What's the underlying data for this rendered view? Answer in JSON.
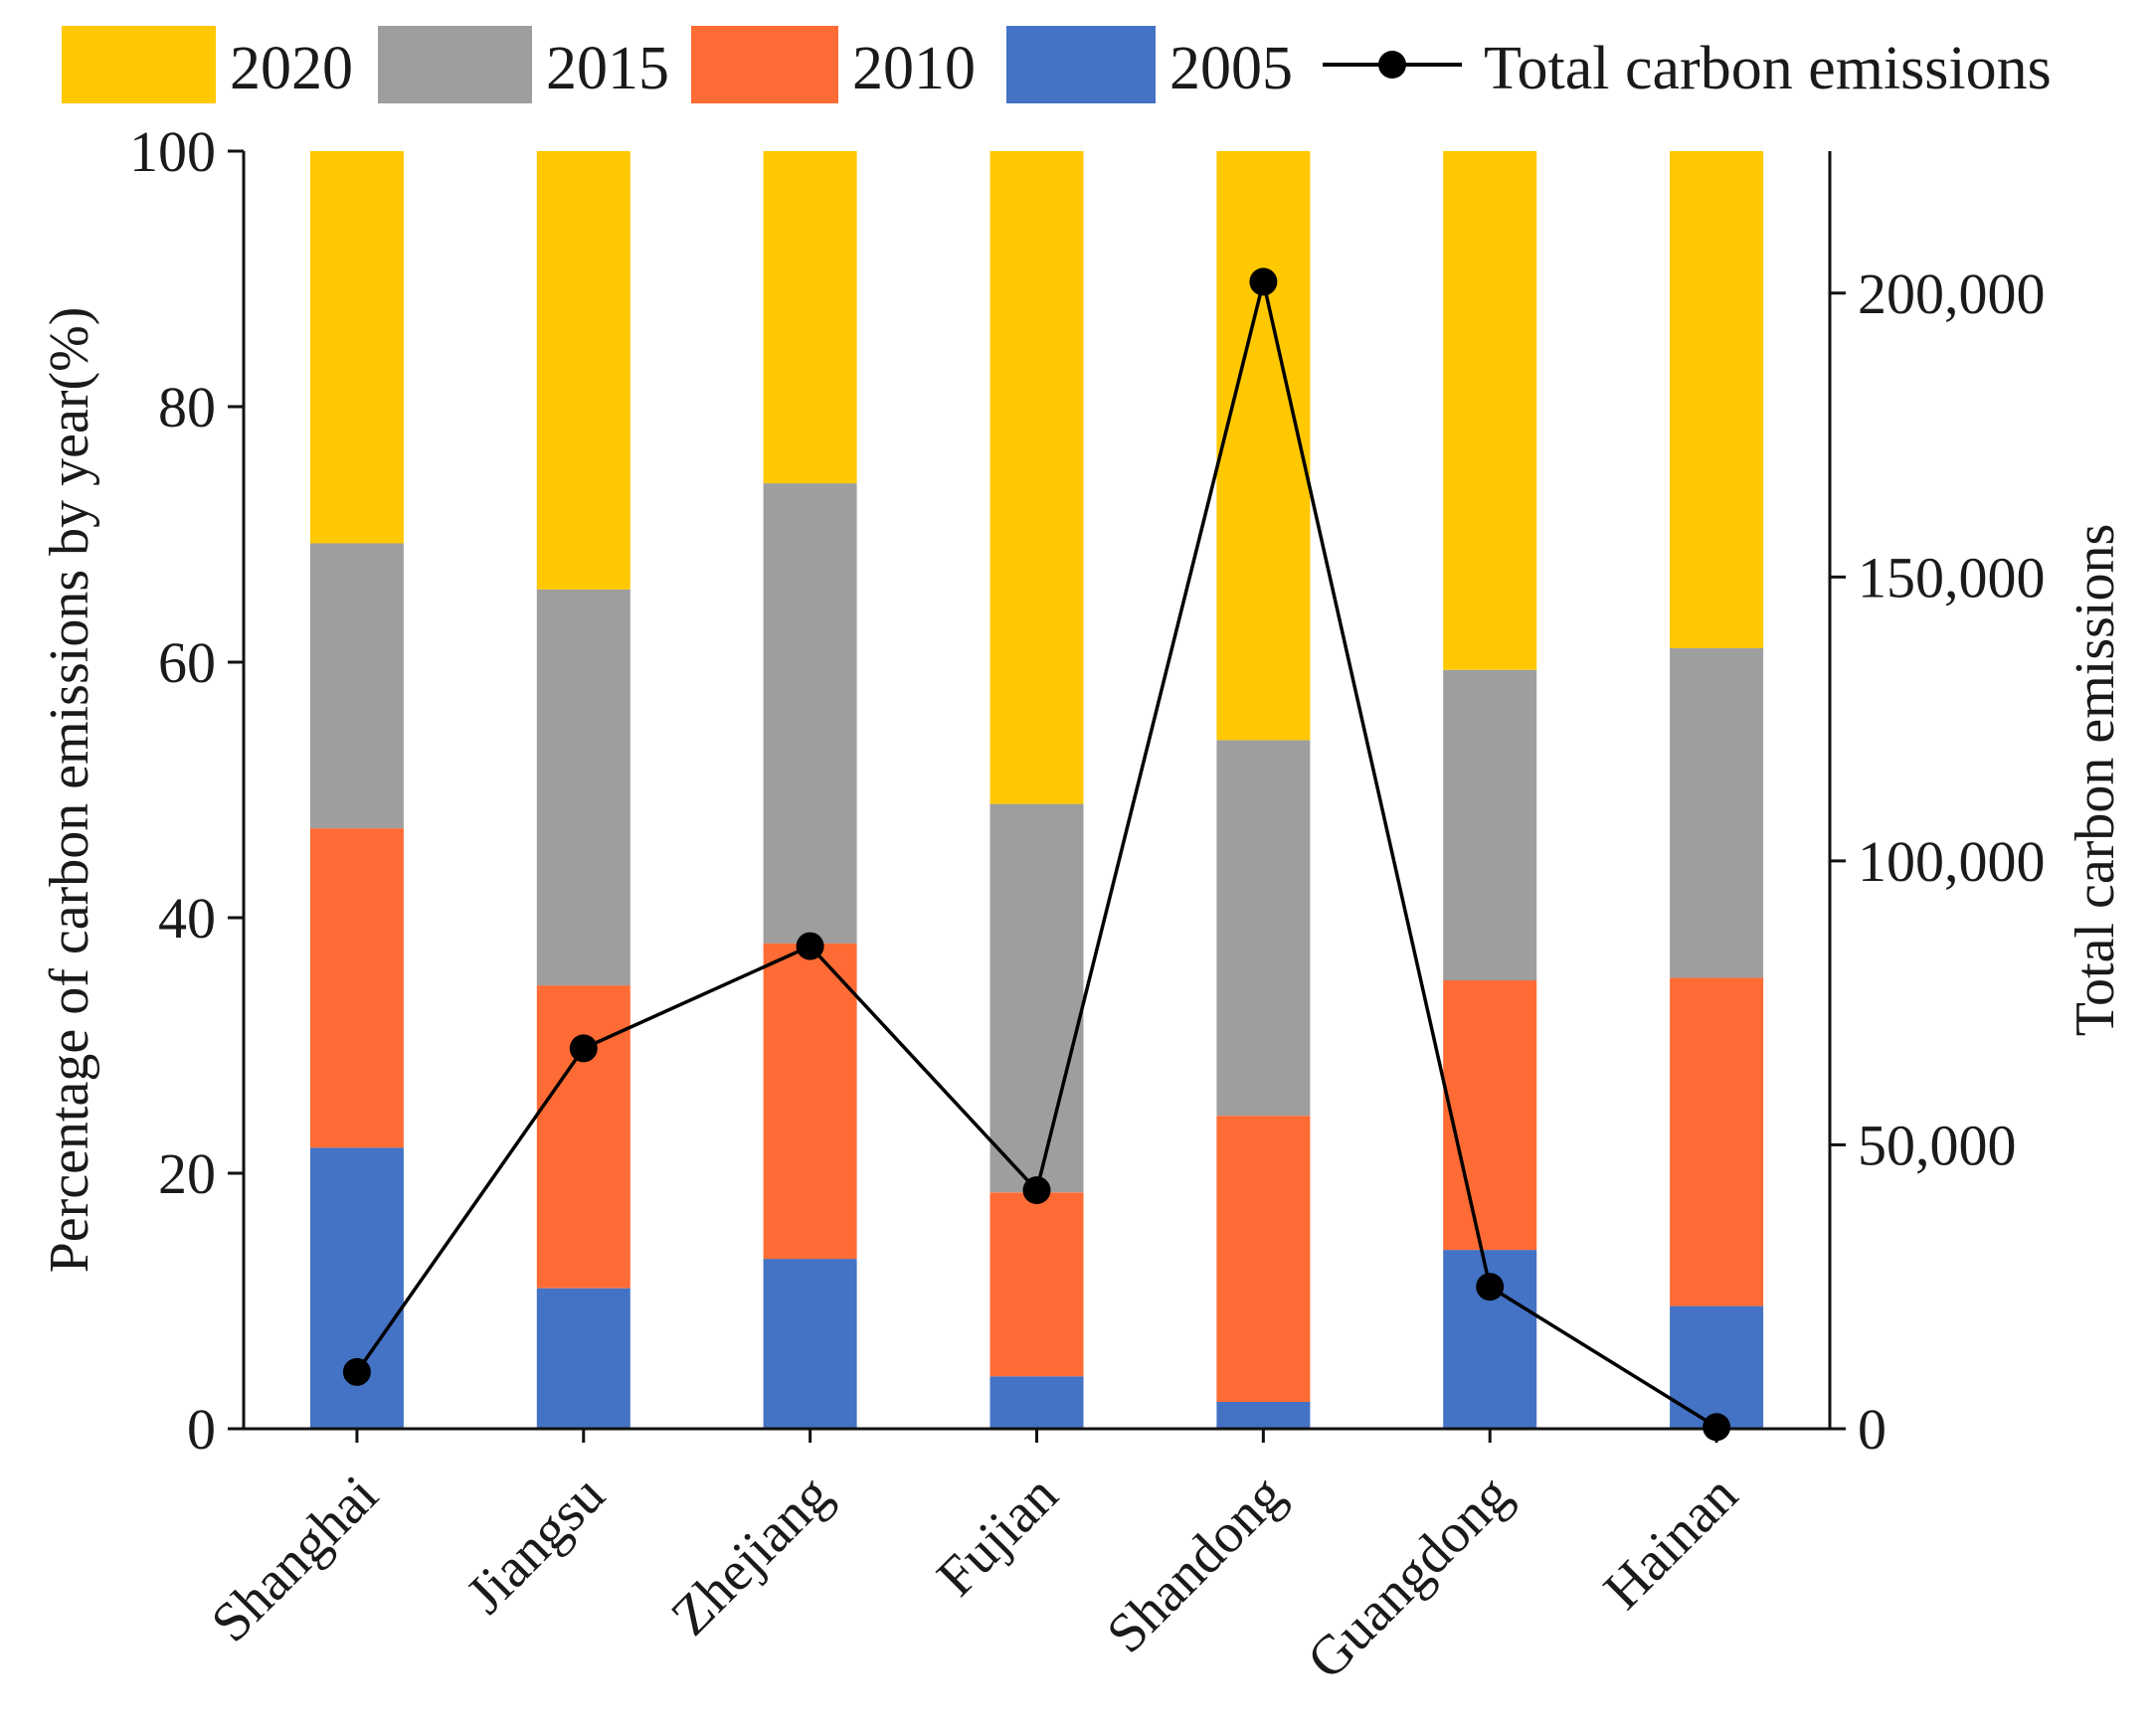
{
  "chart_data": {
    "type": "bar",
    "stacked": true,
    "categories": [
      "Shanghai",
      "Jiangsu",
      "Zhejiang",
      "Fujian",
      "Shandong",
      "Guangdong",
      "Hainan"
    ],
    "series": [
      {
        "name": "2005",
        "color": "#4472C4",
        "values": [
          22,
          11,
          13.3,
          4.1,
          2.1,
          14,
          9.6
        ]
      },
      {
        "name": "2010",
        "color": "#FF6B35",
        "values": [
          25,
          23.7,
          24.7,
          14.4,
          22.4,
          21.1,
          25.7
        ]
      },
      {
        "name": "2015",
        "color": "#9E9E9E",
        "values": [
          22.3,
          31,
          36,
          30.4,
          29.4,
          24.3,
          25.8
        ]
      },
      {
        "name": "2020",
        "color": "#FFC800",
        "values": [
          30.7,
          34.3,
          26,
          51.1,
          46.1,
          40.6,
          38.9
        ]
      }
    ],
    "line_series": {
      "name": "Total carbon emissions",
      "color": "#000000",
      "values": [
        10000,
        67000,
        85000,
        42000,
        202000,
        25000,
        300
      ]
    },
    "title": "",
    "xlabel": "",
    "ylabel": "Percentage of carbon emissions by year(%)",
    "y2label": "Total carbon emissions",
    "ylim": [
      0,
      100
    ],
    "y2lim": [
      0,
      225000
    ],
    "yticks": [
      "0",
      "20",
      "40",
      "60",
      "80",
      "100"
    ],
    "y2ticks": [
      "0",
      "50,000",
      "100,000",
      "150,000",
      "200,000"
    ],
    "legend": [
      {
        "label": "2020",
        "kind": "box",
        "color": "#FFC800"
      },
      {
        "label": "2015",
        "kind": "box",
        "color": "#9E9E9E"
      },
      {
        "label": "2010",
        "kind": "box",
        "color": "#FF6B35"
      },
      {
        "label": "2005",
        "kind": "box",
        "color": "#4472C4"
      },
      {
        "label": "Total carbon emissions",
        "kind": "line",
        "color": "#000000"
      }
    ],
    "legend_position": "top"
  }
}
